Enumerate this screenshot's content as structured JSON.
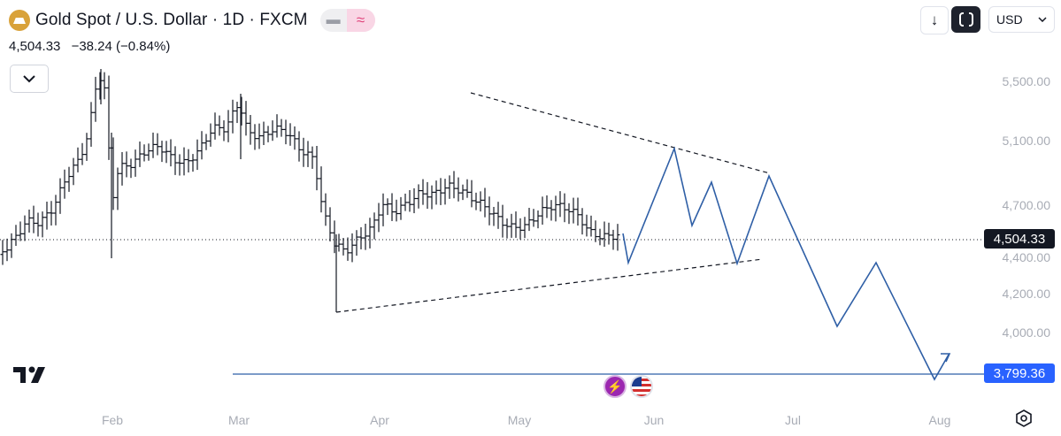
{
  "header": {
    "title": "Gold Spot / U.S. Dollar · 1D · FXCM",
    "pill_left_icon": "minus-icon",
    "pill_right_icon": "wave-icon",
    "last_price": "4,504.33",
    "change": "−38.24 (−0.84%)"
  },
  "toolbar": {
    "down_arrow": "↓",
    "currency": "USD",
    "currency_chevron": "⌄"
  },
  "price_axis": {
    "ticks": [
      "5,500.00",
      "5,100.00",
      "4,700.00",
      "4,400.00",
      "4,200.00",
      "4,000.00"
    ],
    "last_badge": "4,504.33",
    "target_badge": "3,799.36"
  },
  "time_axis": {
    "ticks": [
      "Feb",
      "Mar",
      "Apr",
      "May",
      "Jun",
      "Jul",
      "Aug"
    ]
  },
  "events": {
    "flash_icon": "⚡",
    "flag_icon": "us-flag-icon"
  },
  "colors": {
    "projection": "#2f5fa6",
    "target_line": "#2f5fa6",
    "candles": "#131722",
    "target_badge": "#2962ff",
    "last_badge": "#131722"
  }
}
